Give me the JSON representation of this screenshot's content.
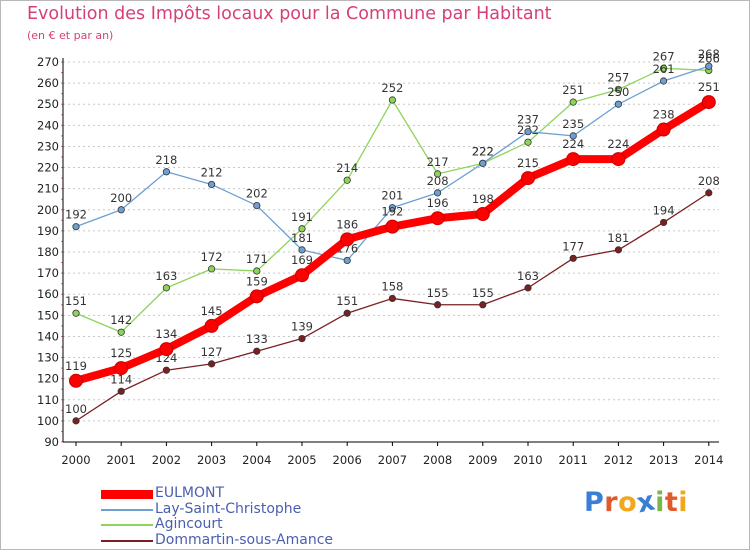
{
  "title": "Evolution des Impôts locaux pour la Commune par Habitant",
  "subtitle": "(en € et par an)",
  "logo": {
    "letters": [
      "P",
      "r",
      "o",
      "x",
      "i",
      "t",
      "i"
    ],
    "colors": [
      "#3a7fd5",
      "#e05b2b",
      "#f2a81d",
      "#3a7fd5",
      "#7ab648",
      "#e05b2b",
      "#f2a81d"
    ]
  },
  "chart_data": {
    "type": "line",
    "title": "Evolution des Impôts locaux pour la Commune par Habitant",
    "subtitle": "(en € et par an)",
    "x": [
      "2000",
      "2001",
      "2002",
      "2003",
      "2004",
      "2005",
      "2006",
      "2007",
      "2008",
      "2009",
      "2010",
      "2011",
      "2012",
      "2013",
      "2014"
    ],
    "ylim": [
      90,
      270
    ],
    "yticks": [
      "90",
      "100",
      "110",
      "120",
      "130",
      "140",
      "150",
      "160",
      "170",
      "180",
      "190",
      "200",
      "210",
      "220",
      "230",
      "240",
      "250",
      "260",
      "270"
    ],
    "grid": "dashed horizontal",
    "legend_position": "bottom-left",
    "series": [
      {
        "name": "Dommartin-sous-Amance",
        "color": "#7b2020",
        "values": [
          100,
          114,
          124,
          127,
          133,
          139,
          151,
          158,
          155,
          155,
          163,
          177,
          181,
          194,
          208
        ],
        "labels": [
          "100",
          "114",
          "124",
          "127",
          "133",
          "139",
          "151",
          "158",
          "155",
          "155",
          "163",
          "177",
          "181",
          "194",
          "208"
        ]
      },
      {
        "name": "Agincourt",
        "color": "#8fd45a",
        "values": [
          151,
          142,
          163,
          172,
          171,
          191,
          214,
          252,
          217,
          222,
          232,
          251,
          257,
          267,
          266
        ],
        "labels": [
          "151",
          "142",
          "163",
          "172",
          "171",
          "191",
          "214",
          "252",
          "217",
          "222",
          "232",
          "251",
          "257",
          "267",
          "266"
        ]
      },
      {
        "name": "Lay-Saint-Christophe",
        "color": "#6e9fd2",
        "values": [
          192,
          200,
          218,
          212,
          202,
          181,
          176,
          201,
          208,
          222,
          237,
          235,
          250,
          261,
          268
        ],
        "labels": [
          "192",
          "200",
          "218",
          "212",
          "202",
          "181",
          "176",
          "201",
          "208",
          "222",
          "237",
          "235",
          "250",
          "261",
          "268"
        ]
      },
      {
        "name": "EULMONT",
        "color": "#ff0000",
        "values": [
          119,
          125,
          134,
          145,
          159,
          169,
          186,
          192,
          196,
          198,
          215,
          224,
          224,
          238,
          251
        ],
        "labels": [
          "119",
          "125",
          "134",
          "145",
          "159",
          "169",
          "186",
          "192",
          "196",
          "198",
          "215",
          "224",
          "224",
          "238",
          "251"
        ]
      }
    ],
    "legend_order": [
      "EULMONT",
      "Lay-Saint-Christophe",
      "Agincourt",
      "Dommartin-sous-Amance"
    ]
  }
}
